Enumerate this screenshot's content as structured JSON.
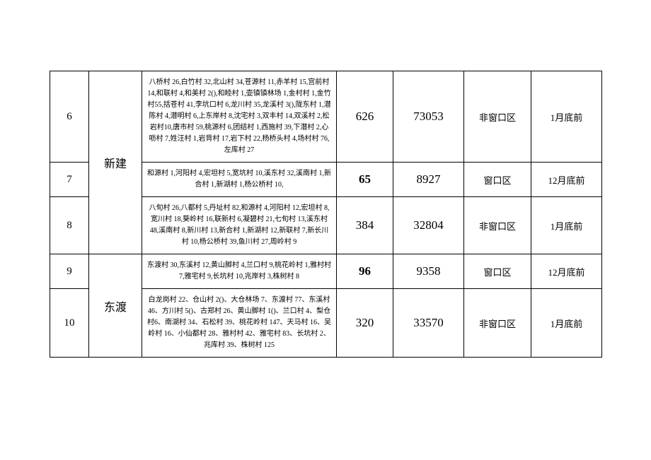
{
  "table": {
    "rows": [
      {
        "idx": "6",
        "name": "",
        "desc": "八桥村 26,白竹村 32,北山村 34,苍源村 11,赤羊村 15,宫前村14,和联村 4,和美村 2(),和睦村 1,壶镇镇林场 1,金村村 1,金竹村55,括苍村 41,李坑口村 6,龙川村 35,龙溪村 3(),陇东村 1,潜陈村 4,潜明村 6,上东岸村 8,沈宅村 3,双丰村 14,双溪村 2,松岩村10,唐市村 59,桃源村 6,团结村 1,西施村 39,下潜村 2,心呖村 7,姓汪村 1,岩背村 17,岩下村 22,杨桥头村 4,场村村 76,左库村 27",
        "v1": "626",
        "v2": "73053",
        "v3": "非窗口区",
        "v4": "1月底前",
        "bold": false
      },
      {
        "idx": "7",
        "name": "",
        "desc": "和源村 1,河阳村 4,宏坦村 5,宽坑村 10,溪东村 32,溪南村 1,新合村 1,新湖村 1,杨公桥村 10,",
        "v1": "65",
        "v2": "8927",
        "v3": "窗口区",
        "v4": "12月底前",
        "bold": true
      },
      {
        "idx": "8",
        "name": "新建",
        "desc": "八旬村 26,八都村 5,丹址村 82,和源村 4,河阳村 12,宏坦村 8,宽川村 18,葵岭村 16,联新村 6,凝碧村 21,七旬村 13,溪东村 48,溪南村 8,新川村 13,新合村 1,新湖村 12,新联村 7,新长川村 10,杨公桥村 39,鱼川村 27,周岭村 9",
        "v1": "384",
        "v2": "32804",
        "v3": "非窗口区",
        "v4": "1月底前",
        "bold": false
      },
      {
        "idx": "9",
        "name": "",
        "desc": "东渡村 30,东溪村 12,黄山脚村 4,兰口村 9,桃花岭村 1,雅村村 7,雅宅村 9,长坑村 10,兆岸村 3,株树村 8",
        "v1": "96",
        "v2": "9358",
        "v3": "窗口区",
        "v4": "12月底前",
        "bold": true
      },
      {
        "idx": "10",
        "name": "东渡",
        "desc": "白龙岗村 22、仓山村 2()、大仓林场 7、东渡村 77、东溪村46、方川村 5()、古郑村 26、黄山脚村 1()、兰口村 4、梨仓村6、南湖村 34、石松村 39、桃花岭村 147、天马村 16、吴岭村 16、小仙都村 28、雅村村 42、雅宅村 83、长坑村 2、兆库村 39、株树村 125",
        "v1": "320",
        "v2": "33570",
        "v3": "非窗口区",
        "v4": "1月底前",
        "bold": false
      }
    ],
    "colors": {
      "border": "#000000",
      "text": "#000000",
      "background": "#ffffff"
    }
  }
}
